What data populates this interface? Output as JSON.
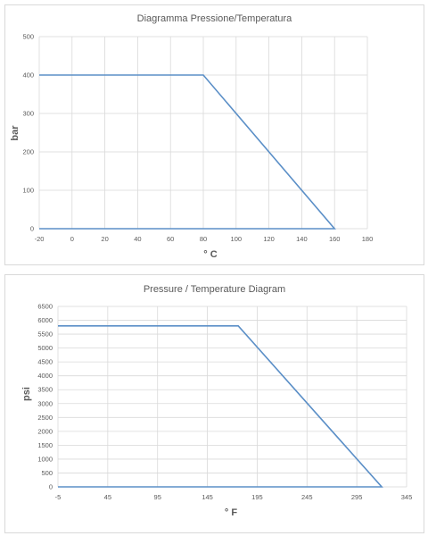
{
  "chart_data": [
    {
      "type": "line",
      "title": "Diagramma Pressione/Temperatura",
      "xlabel": "° C",
      "ylabel": "bar",
      "xlim": [
        -20,
        180
      ],
      "ylim": [
        0,
        500
      ],
      "xticks": [
        -20,
        0,
        20,
        40,
        60,
        80,
        100,
        120,
        140,
        160,
        180
      ],
      "yticks": [
        0,
        100,
        200,
        300,
        400,
        500
      ],
      "grid": true,
      "series": [
        {
          "x": [
            -20,
            80,
            160,
            -20
          ],
          "y": [
            400,
            400,
            0,
            0
          ],
          "color": "#5b8fc7"
        }
      ]
    },
    {
      "type": "line",
      "title": "Pressure / Temperature Diagram",
      "xlabel": "° F",
      "ylabel": "psi",
      "xlim": [
        -5,
        345
      ],
      "ylim": [
        0,
        6500
      ],
      "xticks": [
        -5,
        45,
        95,
        145,
        195,
        245,
        295,
        345
      ],
      "yticks": [
        0,
        500,
        1000,
        1500,
        2000,
        2500,
        3000,
        3500,
        4000,
        4500,
        5000,
        5500,
        6000,
        6500
      ],
      "grid": true,
      "series": [
        {
          "x": [
            -5,
            176,
            320,
            -5
          ],
          "y": [
            5800,
            5800,
            0,
            0
          ],
          "color": "#5b8fc7"
        }
      ]
    }
  ]
}
